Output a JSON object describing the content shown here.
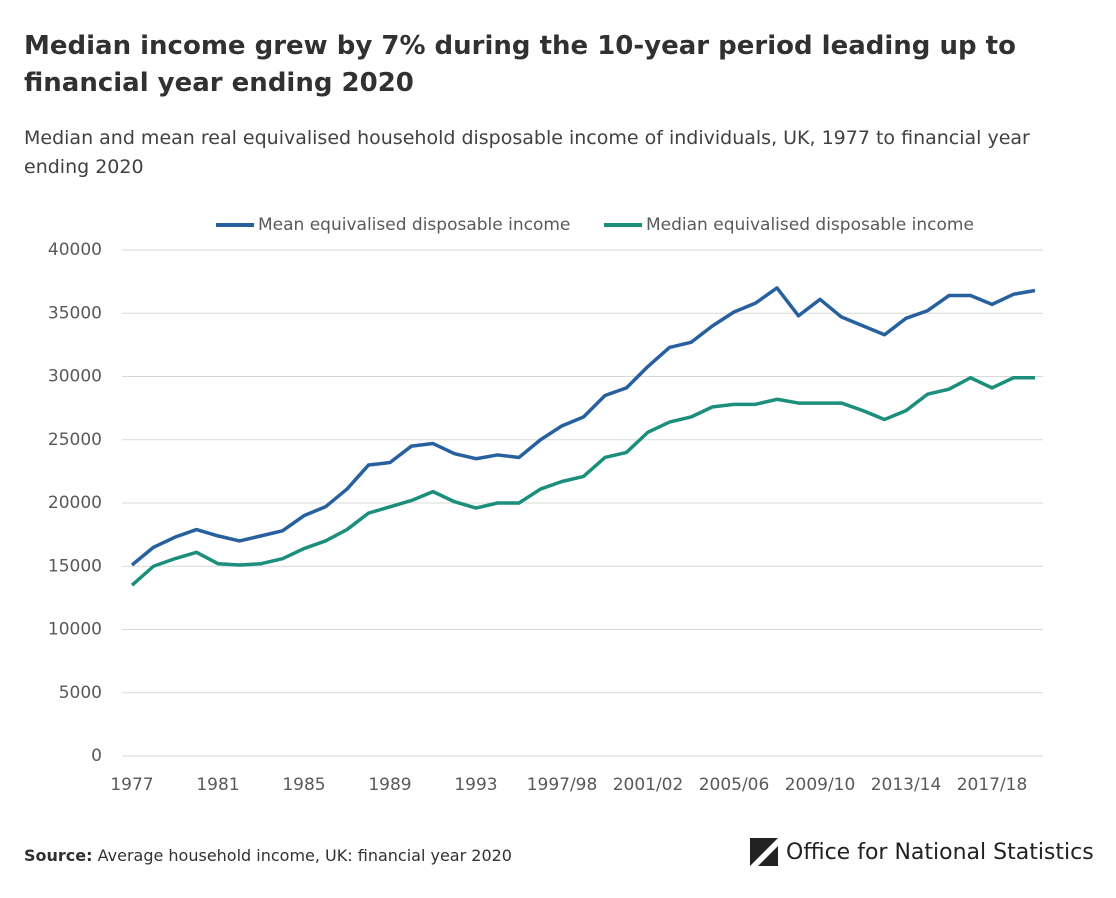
{
  "chart_data": {
    "type": "line",
    "title": "Median income grew by 7% during the 10-year period leading up to financial year ending 2020",
    "subtitle": "Median and mean real equivalised household disposable income of individuals, UK, 1977 to financial year ending 2020",
    "source_label": "Source:",
    "source": "Average household income, UK: financial year 2020",
    "publisher": "Office for National Statistics",
    "categories": [
      "1977",
      null,
      null,
      null,
      "1981",
      null,
      null,
      null,
      "1985",
      null,
      null,
      null,
      "1989",
      null,
      null,
      null,
      "1993",
      null,
      null,
      null,
      "1997/98",
      null,
      null,
      null,
      "2001/02",
      null,
      null,
      null,
      "2005/06",
      null,
      null,
      null,
      "2009/10",
      null,
      null,
      null,
      "2013/14",
      null,
      null,
      null,
      "2017/18",
      null,
      null
    ],
    "series": [
      {
        "name": "Mean equivalised disposable income",
        "color": "#27609e",
        "values": [
          15100,
          16500,
          17300,
          17900,
          17400,
          17000,
          17400,
          17800,
          19000,
          19700,
          21100,
          23000,
          23200,
          24500,
          24700,
          23900,
          23500,
          23800,
          23600,
          25000,
          26100,
          26800,
          28500,
          29100,
          30800,
          32300,
          32700,
          34000,
          35100,
          35800,
          37000,
          34800,
          36100,
          34700,
          34000,
          33300,
          34600,
          35200,
          36400,
          36400,
          35700,
          36500,
          36800
        ]
      },
      {
        "name": "Median equivalised disposable income",
        "color": "#1b8f7c",
        "values": [
          13500,
          15000,
          15600,
          16100,
          15200,
          15100,
          15200,
          15600,
          16400,
          17000,
          17900,
          19200,
          19700,
          20200,
          20900,
          20100,
          19600,
          20000,
          20000,
          21100,
          21700,
          22100,
          23600,
          24000,
          25600,
          26400,
          26800,
          27600,
          27800,
          27800,
          28200,
          27900,
          27900,
          27900,
          27300,
          26600,
          27300,
          28600,
          29000,
          29900,
          29100,
          29900,
          29900
        ]
      }
    ],
    "ylim": [
      0,
      40000
    ],
    "yticks": [
      0,
      5000,
      10000,
      15000,
      20000,
      25000,
      30000,
      35000,
      40000
    ],
    "grid": true,
    "legend": "top"
  }
}
